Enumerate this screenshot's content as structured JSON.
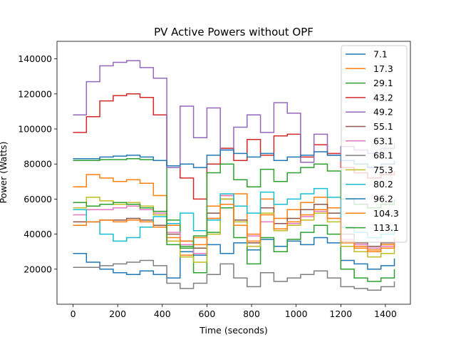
{
  "chart_data": {
    "type": "line",
    "title": "PV Active Powers without OPF",
    "xlabel": "Time (seconds)",
    "ylabel": "Power (Watts)",
    "xlim": [
      -72,
      1512
    ],
    "ylim": [
      0,
      150000
    ],
    "xticks": [
      0,
      200,
      400,
      600,
      800,
      1000,
      1200,
      1400
    ],
    "yticks": [
      20000,
      40000,
      60000,
      80000,
      100000,
      120000,
      140000
    ],
    "legend_position": "top-right",
    "grid": false,
    "x": [
      0,
      60,
      120,
      180,
      240,
      300,
      360,
      420,
      480,
      540,
      600,
      660,
      720,
      780,
      840,
      900,
      960,
      1020,
      1080,
      1140,
      1200,
      1260,
      1320,
      1380,
      1440
    ],
    "series": [
      {
        "name": "7.1",
        "color": "#1f77b4",
        "values": [
          29000,
          24000,
          20000,
          18000,
          17000,
          19000,
          17000,
          15000,
          30000,
          28000,
          34000,
          29000,
          35000,
          31000,
          37000,
          33000,
          36000,
          34000,
          38000,
          35000,
          25000,
          23000,
          20000,
          22000,
          26000
        ]
      },
      {
        "name": "17.3",
        "color": "#ff7f0e",
        "values": [
          67000,
          74000,
          72000,
          70000,
          71000,
          69000,
          62000,
          45000,
          28000,
          38000,
          56000,
          62000,
          63000,
          40000,
          60000,
          49000,
          54000,
          58000,
          61000,
          55000,
          35000,
          33000,
          31000,
          34000,
          38000
        ]
      },
      {
        "name": "29.1",
        "color": "#2ca02c",
        "values": [
          82000,
          82000,
          82500,
          82500,
          83000,
          82500,
          82000,
          48000,
          33000,
          18000,
          41000,
          55000,
          38000,
          23000,
          38000,
          30000,
          37000,
          41000,
          45000,
          40000,
          20000,
          15000,
          13000,
          15000,
          20000
        ]
      },
      {
        "name": "43.2",
        "color": "#d62728",
        "values": [
          98000,
          107000,
          116000,
          119000,
          120000,
          118000,
          108000,
          79000,
          72000,
          60000,
          80000,
          89000,
          82000,
          94000,
          85000,
          96000,
          97000,
          84000,
          91000,
          86000,
          78000,
          75000,
          72000,
          74000,
          76000
        ]
      },
      {
        "name": "49.2",
        "color": "#9467bd",
        "values": [
          108000,
          127000,
          136000,
          138000,
          139000,
          135000,
          129000,
          78000,
          113000,
          95000,
          112000,
          88000,
          101000,
          108000,
          98000,
          115000,
          109000,
          81000,
          97000,
          85000,
          90000,
          88000,
          86000,
          89000,
          92000
        ]
      },
      {
        "name": "55.1",
        "color": "#8c564b",
        "values": [
          47000,
          47000,
          48000,
          48000,
          49000,
          48000,
          45000,
          40000,
          36000,
          32000,
          52000,
          60000,
          48000,
          35000,
          55000,
          46000,
          49000,
          54000,
          57000,
          52000,
          40000,
          35000,
          33000,
          35000,
          37000
        ]
      },
      {
        "name": "63.1",
        "color": "#e377c2",
        "values": [
          51000,
          54000,
          54000,
          55000,
          56000,
          54000,
          52000,
          41000,
          34000,
          29000,
          49000,
          62000,
          45000,
          39000,
          47000,
          42000,
          46000,
          50000,
          53000,
          49000,
          37000,
          34000,
          32000,
          33000,
          36000
        ]
      },
      {
        "name": "68.1",
        "color": "#7f7f7f",
        "values": [
          21000,
          21000,
          22000,
          23000,
          24000,
          25000,
          22000,
          12000,
          9000,
          12000,
          17000,
          23000,
          15000,
          10000,
          18000,
          13000,
          15000,
          17000,
          19000,
          15000,
          10000,
          9000,
          8000,
          10000,
          13000
        ]
      },
      {
        "name": "75.3",
        "color": "#bcbd22",
        "values": [
          55000,
          61000,
          59000,
          57000,
          58000,
          56000,
          51000,
          36000,
          27000,
          24000,
          40000,
          60000,
          47000,
          33000,
          52000,
          42000,
          45000,
          48000,
          52000,
          47000,
          33000,
          30000,
          27000,
          29000,
          33000
        ]
      },
      {
        "name": "80.2",
        "color": "#17becf",
        "values": [
          54000,
          47000,
          40000,
          36000,
          38000,
          44000,
          50000,
          46000,
          52000,
          42000,
          48000,
          63000,
          56000,
          52000,
          64000,
          57000,
          60000,
          63000,
          66000,
          61000,
          44000,
          41000,
          38000,
          40000,
          43000
        ]
      },
      {
        "name": "96.2",
        "color": "#1f77b4",
        "values": [
          83000,
          83000,
          84000,
          84500,
          85000,
          84000,
          82000,
          79000,
          80000,
          78000,
          85000,
          88000,
          86000,
          84000,
          86000,
          82000,
          84000,
          85000,
          87000,
          85000,
          82000,
          80000,
          78000,
          80000,
          82000
        ]
      },
      {
        "name": "104.3",
        "color": "#ff7f0e",
        "values": [
          45000,
          47000,
          48000,
          47000,
          48000,
          47000,
          44000,
          38000,
          36000,
          34000,
          49000,
          57000,
          45000,
          36000,
          51000,
          43000,
          47000,
          51000,
          54000,
          49000,
          36000,
          32000,
          30000,
          32000,
          35000
        ]
      },
      {
        "name": "113.1",
        "color": "#2ca02c",
        "values": [
          58000,
          56000,
          57000,
          58000,
          57000,
          55000,
          53000,
          34000,
          32000,
          39000,
          75000,
          80000,
          71000,
          67000,
          77000,
          70000,
          75000,
          78000,
          80000,
          76000,
          60000,
          57000,
          55000,
          57000,
          60000
        ]
      }
    ]
  }
}
